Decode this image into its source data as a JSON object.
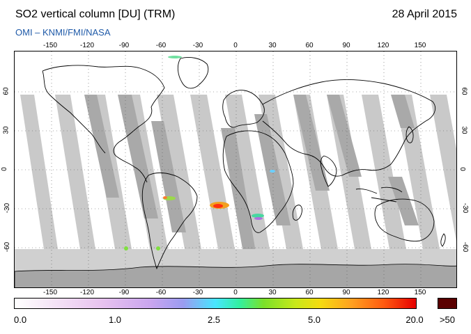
{
  "header": {
    "title": "SO2 vertical column [DU] (TRM)",
    "date": "28 April 2015",
    "subtitle": "OMI  –  KNMI/FMI/NASA"
  },
  "map": {
    "projection": "equirectangular",
    "lon_range": [
      -180,
      180
    ],
    "lat_range": [
      -90,
      90
    ],
    "lon_ticks": [
      "-150",
      "-120",
      "-90",
      "-60",
      "-30",
      "0",
      "30",
      "60",
      "90",
      "120",
      "150"
    ],
    "lat_ticks": [
      "60",
      "30",
      "0",
      "-30",
      "-60"
    ],
    "colors": {
      "no_data_swath": "#c9c9c9",
      "swath_overlap": "#a9a9a9",
      "polar_fill": "#d0d0d0",
      "antarctica": "#a6a6a6",
      "coastline": "#000000"
    }
  },
  "colorbar": {
    "labels": [
      "0.0",
      "1.0",
      "2.5",
      "5.0",
      "20.0",
      ">50"
    ],
    "colors": {
      "low": "#ffffff",
      "mid": "#48e6ff",
      "high": "#e60000",
      "overflow": "#5a0000"
    }
  }
}
